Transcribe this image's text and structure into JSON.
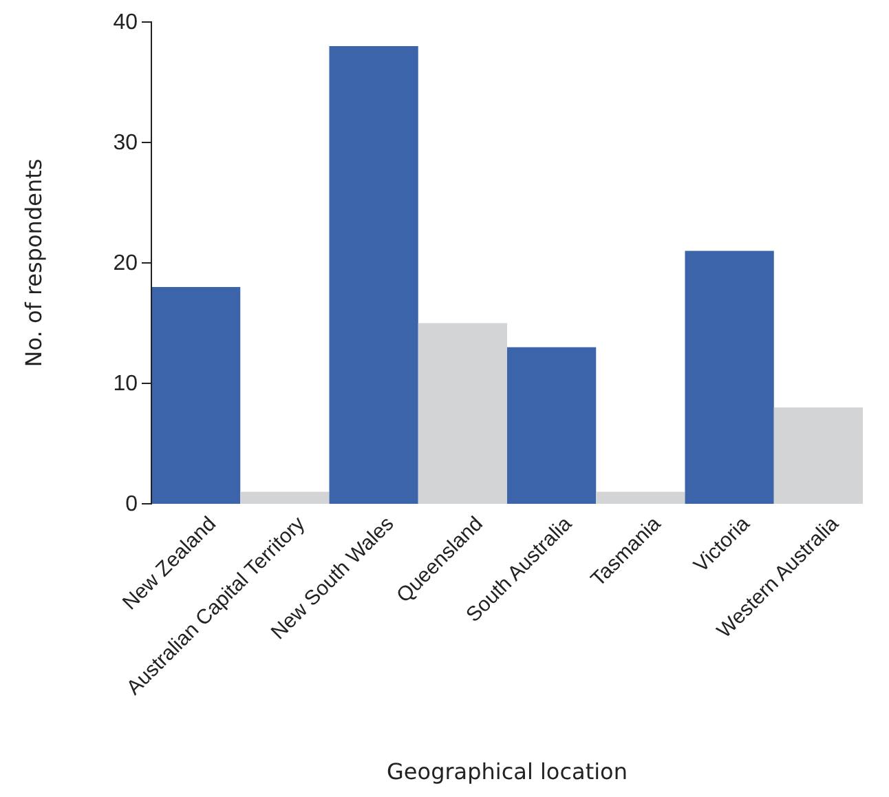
{
  "chart_data": {
    "type": "bar",
    "xlabel": "Geographical location",
    "ylabel": "No. of respondents",
    "categories": [
      "New Zealand",
      "Australian Capital Territory",
      "New South Wales",
      "Queensland",
      "South Australia",
      "Tasmania",
      "Victoria",
      "Western Australia"
    ],
    "values": [
      18,
      1,
      38,
      15,
      13,
      1,
      21,
      8
    ],
    "colors": [
      "#3c64ab",
      "#d3d4d6",
      "#3c64ab",
      "#d3d4d6",
      "#3c64ab",
      "#d3d4d6",
      "#3c64ab",
      "#d3d4d6"
    ],
    "ylim": [
      0,
      40
    ],
    "yticks": [
      0,
      10,
      20,
      30,
      40
    ],
    "grid": false
  }
}
